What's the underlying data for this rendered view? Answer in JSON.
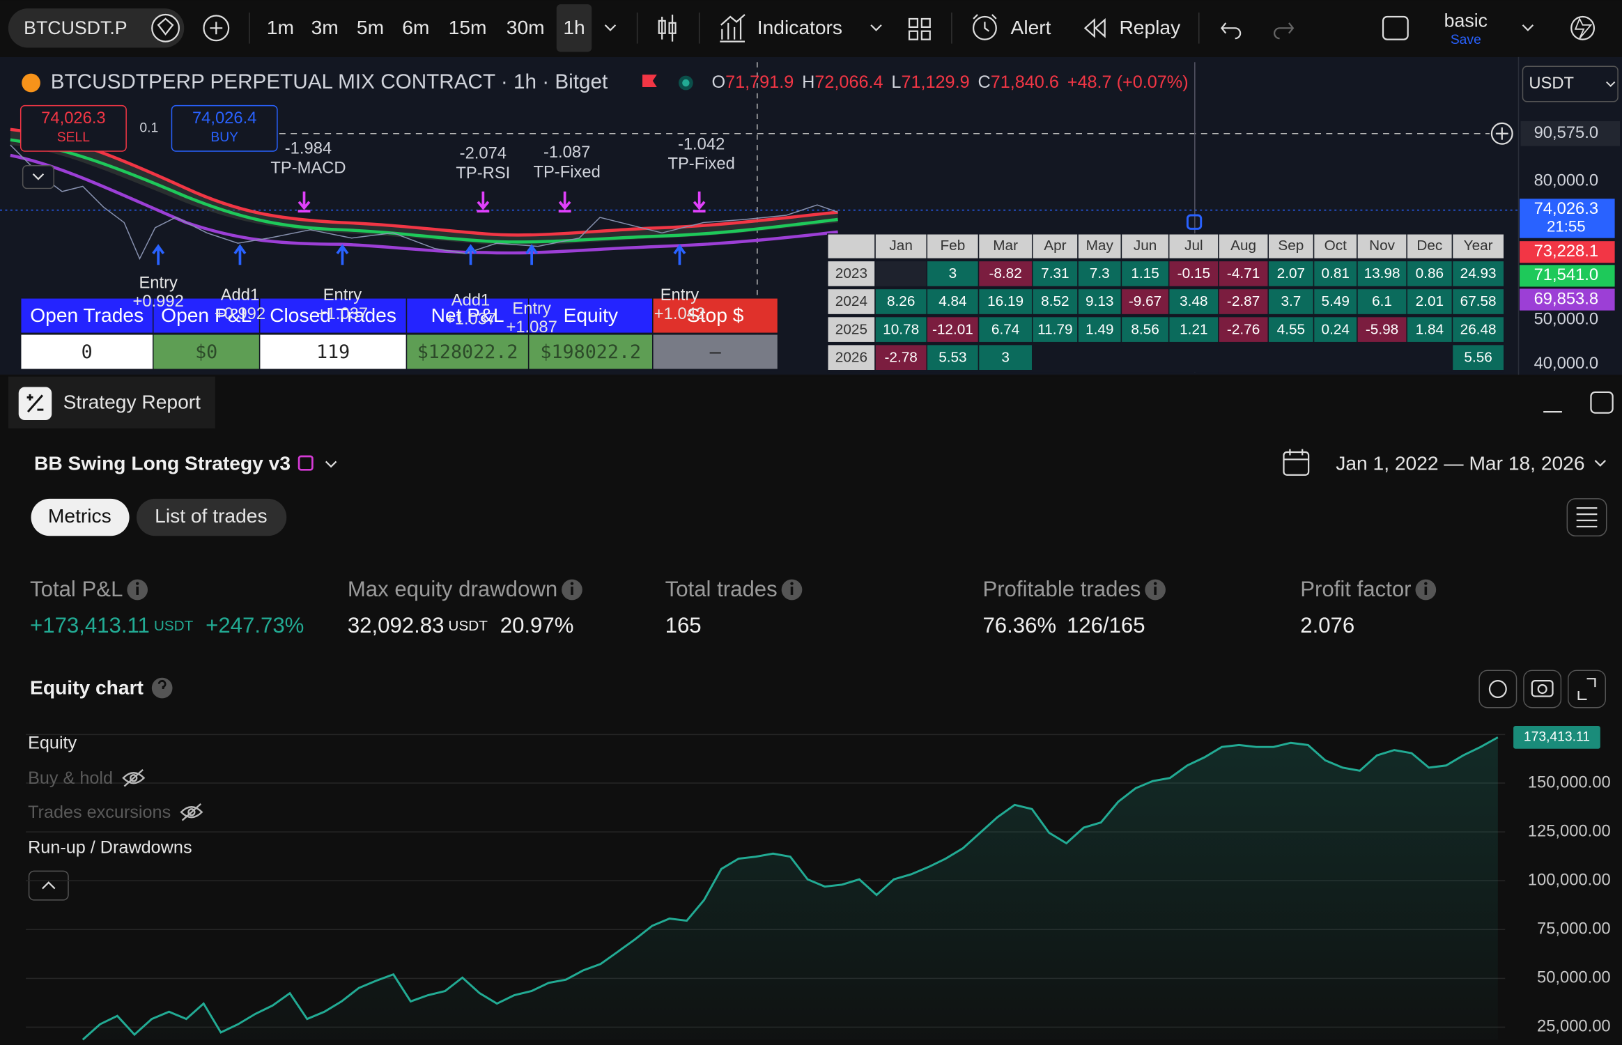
{
  "toolbar": {
    "symbol": "BTCUSDT.P",
    "intervals": [
      "1m",
      "3m",
      "5m",
      "6m",
      "15m",
      "30m",
      "1h"
    ],
    "indicators": "Indicators",
    "alert": "Alert",
    "replay": "Replay",
    "layout": "basic",
    "save": "Save"
  },
  "chart": {
    "title": "BTCUSDTPERP PERPETUAL MIX CONTRACT · 1h · Bitget",
    "ohlc": [
      {
        "label": "O",
        "value": "71,791.9"
      },
      {
        "label": "H",
        "value": "72,066.4"
      },
      {
        "label": "L",
        "value": "71,129.9"
      },
      {
        "label": "C",
        "value": "71,840.6"
      }
    ],
    "change": "+48.7 (+0.07%)",
    "currency": "USDT",
    "sell": {
      "price": "74,026.3",
      "label": "SELL"
    },
    "spread": "0.1",
    "buy": {
      "price": "74,026.4",
      "label": "BUY"
    },
    "price_axis": [
      "90,575.0",
      "80,000.0",
      "50,000.0",
      "40,000.0"
    ],
    "price_tags": [
      {
        "text": "74,026.3",
        "sub": "21:55",
        "color": "#2962ff"
      },
      {
        "text": "73,228.1",
        "color": "#f23645"
      },
      {
        "text": "71,541.0",
        "color": "#1ec95a"
      },
      {
        "text": "69,853.8",
        "color": "#9c3fd6"
      }
    ],
    "exits": [
      {
        "value": -1.984,
        "label": "TP-MACD"
      },
      {
        "value": -2.074,
        "label": "TP-RSI"
      },
      {
        "value": -1.087,
        "label": "TP-Fixed"
      },
      {
        "value": -1.042,
        "label": "TP-Fixed"
      }
    ],
    "entries": [
      {
        "label": "Entry",
        "value": "+0.992"
      },
      {
        "label": "Add1",
        "value": "+0.992"
      },
      {
        "label": "Entry",
        "value": "+1.037"
      },
      {
        "label": "Add1",
        "value": "+1.037"
      },
      {
        "label": "Entry",
        "value": "+1.087"
      },
      {
        "label": "Entry",
        "value": "+1.042"
      }
    ]
  },
  "trades_table": {
    "headers": [
      "Open Trades",
      "Open P&L",
      "Closed Trades",
      "Net P&L",
      "Equity",
      "Stop $"
    ],
    "values": [
      "0",
      "$0",
      "119",
      "$128022.2",
      "$198022.2",
      "—"
    ]
  },
  "monthly_table": {
    "columns": [
      "Jan",
      "Feb",
      "Mar",
      "Apr",
      "May",
      "Jun",
      "Jul",
      "Aug",
      "Sep",
      "Oct",
      "Nov",
      "Dec",
      "Year"
    ],
    "rows": [
      {
        "year": 2023,
        "values": [
          null,
          3,
          -8.82,
          7.31,
          7.3,
          1.15,
          -0.15,
          -4.71,
          2.07,
          0.81,
          13.98,
          0.86,
          24.93
        ]
      },
      {
        "year": 2024,
        "values": [
          8.26,
          4.84,
          16.19,
          8.52,
          9.13,
          -9.67,
          3.48,
          -2.87,
          3.7,
          5.49,
          6.1,
          2.01,
          67.58
        ]
      },
      {
        "year": 2025,
        "values": [
          10.78,
          -12.01,
          6.74,
          11.79,
          1.49,
          8.56,
          1.21,
          -2.76,
          4.55,
          0.24,
          -5.98,
          1.84,
          26.48
        ]
      },
      {
        "year": 2026,
        "values": [
          -2.78,
          5.53,
          3,
          null,
          null,
          null,
          null,
          null,
          null,
          null,
          null,
          null,
          5.56
        ]
      }
    ]
  },
  "report": {
    "tab": "Strategy Report",
    "strategy": "BB Swing Long Strategy v3",
    "date_range": "Jan 1, 2022 — Mar 18, 2026",
    "tabs": [
      "Metrics",
      "List of trades"
    ],
    "metrics": [
      {
        "label": "Total P&L",
        "value": "+173,413.11",
        "unit": "USDT",
        "extra": "+247.73%"
      },
      {
        "label": "Max equity drawdown",
        "value": "32,092.83",
        "unit": "USDT",
        "extra": "20.97%"
      },
      {
        "label": "Total trades",
        "value": "165"
      },
      {
        "label": "Profitable trades",
        "value": "76.36%",
        "extra": "126/165"
      },
      {
        "label": "Profit factor",
        "value": "2.076"
      }
    ],
    "hidden_series": [
      "Buy & hold",
      "Trades excursions"
    ],
    "toggle": "Run-up / Drawdowns"
  },
  "chart_data": {
    "type": "line",
    "title": "Equity chart",
    "series": [
      {
        "name": "Equity",
        "color": "#22ab94",
        "values": [
          18600,
          26500,
          30800,
          21200,
          29200,
          32900,
          29200,
          37100,
          22300,
          26500,
          31800,
          36100,
          42400,
          29200,
          32900,
          38200,
          45100,
          48800,
          52000,
          38200,
          41400,
          43500,
          50400,
          42400,
          37100,
          41400,
          43500,
          47700,
          49300,
          54100,
          57300,
          63600,
          70000,
          76900,
          80600,
          79500,
          90100,
          106000,
          111300,
          112300,
          113900,
          112300,
          100700,
          97000,
          98000,
          100700,
          92700,
          100700,
          103300,
          107000,
          111300,
          116600,
          124500,
          132500,
          138800,
          136700,
          124500,
          119200,
          127200,
          129800,
          140400,
          147300,
          151000,
          152600,
          159000,
          163200,
          168500,
          169500,
          168500,
          168500,
          170600,
          169500,
          161600,
          157900,
          156300,
          164200,
          166900,
          165300,
          157900,
          159000,
          164200,
          168500,
          173413.11
        ],
        "value_labels": [
          null,
          null,
          null,
          null,
          null,
          null,
          null,
          null,
          null,
          null,
          null,
          null,
          null,
          null,
          null,
          null,
          null,
          null,
          null,
          null,
          null,
          null,
          null,
          null,
          null,
          null,
          null,
          null,
          null,
          null,
          null,
          null,
          null,
          null,
          null,
          null,
          null,
          null,
          null,
          null,
          null,
          null,
          null,
          null,
          null,
          null,
          null,
          null,
          null,
          null,
          null,
          null,
          null,
          null,
          null,
          null,
          null,
          null,
          null,
          null,
          null,
          null,
          null,
          null,
          null,
          null,
          null,
          null,
          null,
          null,
          null,
          null,
          null,
          null,
          null,
          null,
          null,
          null,
          null,
          null,
          null,
          null,
          "173,413.11"
        ]
      }
    ],
    "ylim": [
      18600,
      175900
    ],
    "yticks": [
      {
        "value": 25000,
        "label": "25,000.00"
      },
      {
        "value": 50000,
        "label": "50,000.00"
      },
      {
        "value": 75000,
        "label": "75,000.00"
      },
      {
        "value": 100000,
        "label": "100,000.00"
      },
      {
        "value": 125000,
        "label": "125,000.00"
      },
      {
        "value": 150000,
        "label": "150,000.00"
      }
    ],
    "grid": true
  }
}
